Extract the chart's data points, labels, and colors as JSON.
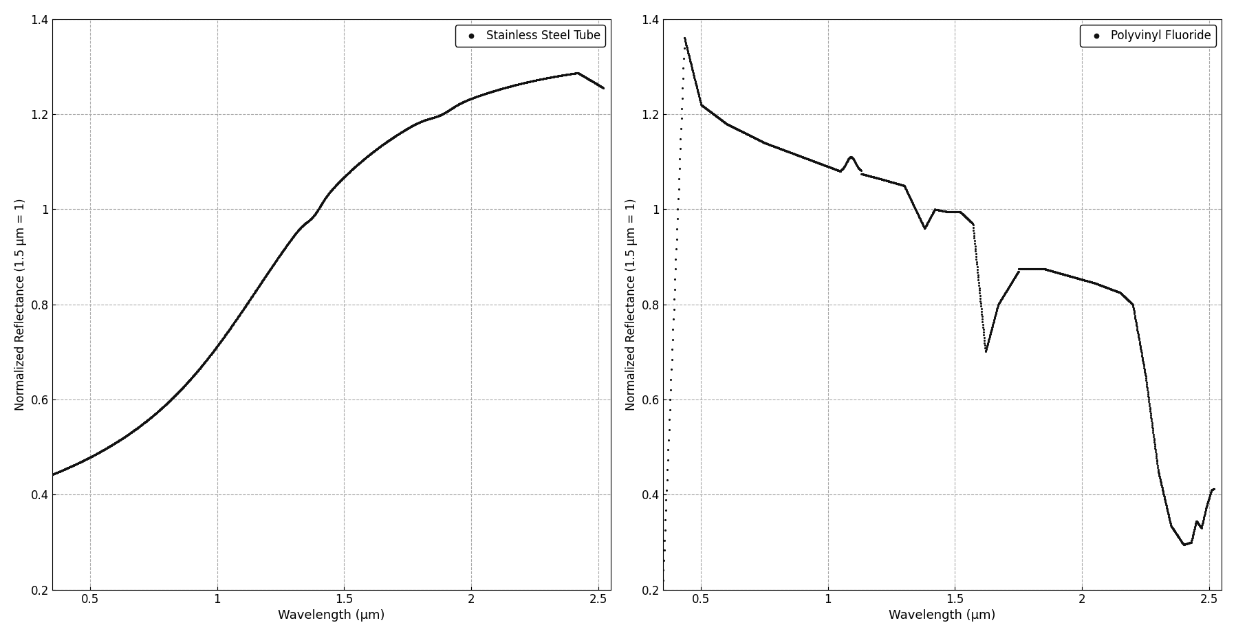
{
  "title1": "Stainless Steel Tube",
  "title2": "Polyvinyl Fluoride",
  "xlabel": "Wavelength (μm)",
  "ylabel": "Normalized Reflectance (1.5 μm = 1)",
  "xlim": [
    0.35,
    2.55
  ],
  "ylim": [
    0.2,
    1.4
  ],
  "xticks": [
    0.5,
    1.0,
    1.5,
    2.0,
    2.5
  ],
  "yticks": [
    0.2,
    0.4,
    0.6,
    0.8,
    1.0,
    1.2,
    1.4
  ],
  "dot_color": "#111111",
  "dot_size": 5,
  "background": "#ffffff",
  "grid_color": "#aaaaaa",
  "grid_style": "--",
  "legend_marker_size": 8
}
